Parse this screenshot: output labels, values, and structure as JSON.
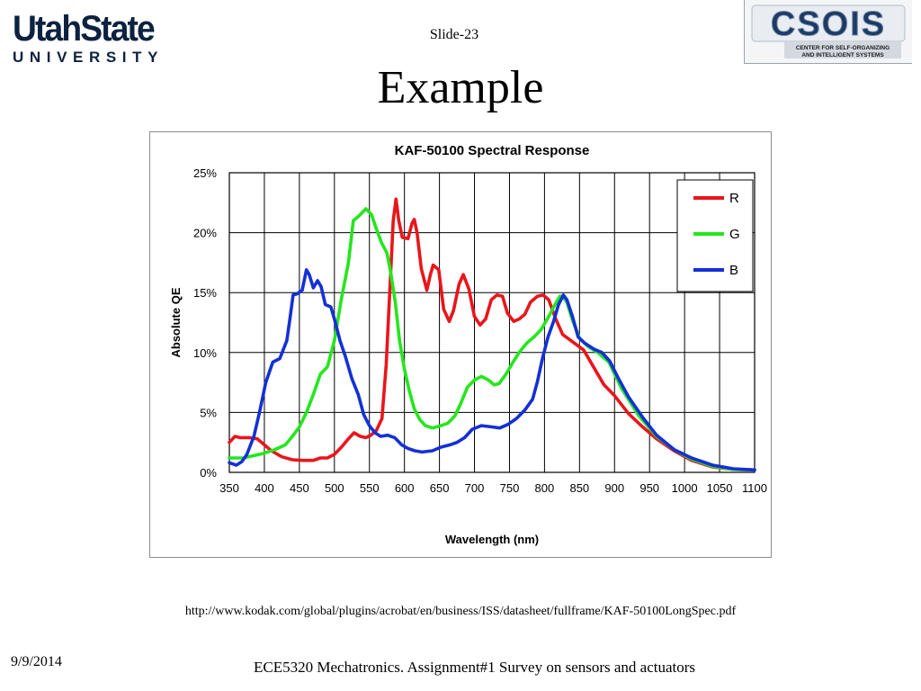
{
  "header": {
    "logo_left": {
      "line1": "UtahState",
      "line2": "UNIVERSITY"
    },
    "slide_number": "Slide-23",
    "title": "Example",
    "logo_right": {
      "name": "CSOIS",
      "subtitle_line1": "CENTER FOR SELF-ORGANIZING",
      "subtitle_line2": "AND INTELLIGENT SYSTEMS"
    }
  },
  "colors": {
    "red": "#e8161b",
    "green": "#25e61e",
    "blue": "#1430d6",
    "usu_navy": "#0d2240",
    "csois_navy": "#1d3a63"
  },
  "chart_data": {
    "type": "line",
    "title": "KAF-50100 Spectral Response",
    "xlabel": "Wavelength (nm)",
    "ylabel": "Absolute QE",
    "xlim": [
      350,
      1100
    ],
    "ylim": [
      0,
      25
    ],
    "grid": true,
    "legend_position": "top-right",
    "x_ticks": [
      350,
      400,
      450,
      500,
      550,
      600,
      650,
      700,
      750,
      800,
      850,
      900,
      950,
      1000,
      1050,
      1100
    ],
    "y_ticks": [
      0,
      5,
      10,
      15,
      20,
      25
    ],
    "y_tick_labels": [
      "0%",
      "5%",
      "10%",
      "15%",
      "20%",
      "25%"
    ],
    "series": [
      {
        "name": "R",
        "color": "#e8161b",
        "points": [
          [
            350,
            2.5
          ],
          [
            358,
            3.0
          ],
          [
            365,
            2.9
          ],
          [
            378,
            2.9
          ],
          [
            390,
            2.8
          ],
          [
            400,
            2.3
          ],
          [
            410,
            1.8
          ],
          [
            425,
            1.3
          ],
          [
            440,
            1.05
          ],
          [
            455,
            1.0
          ],
          [
            470,
            1.0
          ],
          [
            480,
            1.2
          ],
          [
            490,
            1.2
          ],
          [
            500,
            1.5
          ],
          [
            510,
            2.1
          ],
          [
            520,
            2.8
          ],
          [
            528,
            3.3
          ],
          [
            537,
            3.0
          ],
          [
            545,
            2.9
          ],
          [
            552,
            3.1
          ],
          [
            560,
            3.5
          ],
          [
            568,
            4.5
          ],
          [
            574,
            9.0
          ],
          [
            579,
            15.0
          ],
          [
            584,
            21.0
          ],
          [
            588,
            22.8
          ],
          [
            592,
            21.0
          ],
          [
            597,
            19.6
          ],
          [
            605,
            19.5
          ],
          [
            611,
            20.8
          ],
          [
            614,
            21.1
          ],
          [
            618,
            20.0
          ],
          [
            624,
            17.0
          ],
          [
            632,
            15.2
          ],
          [
            637,
            16.5
          ],
          [
            641,
            17.3
          ],
          [
            649,
            16.9
          ],
          [
            656,
            13.6
          ],
          [
            664,
            12.6
          ],
          [
            670,
            13.5
          ],
          [
            678,
            15.7
          ],
          [
            684,
            16.5
          ],
          [
            692,
            15.3
          ],
          [
            700,
            13.0
          ],
          [
            708,
            12.3
          ],
          [
            716,
            12.8
          ],
          [
            724,
            14.4
          ],
          [
            732,
            14.8
          ],
          [
            740,
            14.7
          ],
          [
            747,
            13.3
          ],
          [
            756,
            12.6
          ],
          [
            764,
            12.8
          ],
          [
            772,
            13.2
          ],
          [
            780,
            14.2
          ],
          [
            790,
            14.7
          ],
          [
            798,
            14.8
          ],
          [
            806,
            14.4
          ],
          [
            816,
            12.8
          ],
          [
            826,
            11.5
          ],
          [
            840,
            10.9
          ],
          [
            856,
            10.2
          ],
          [
            870,
            8.8
          ],
          [
            885,
            7.3
          ],
          [
            900,
            6.4
          ],
          [
            920,
            4.9
          ],
          [
            940,
            3.8
          ],
          [
            960,
            2.8
          ],
          [
            985,
            1.8
          ],
          [
            1010,
            1.0
          ],
          [
            1040,
            0.45
          ],
          [
            1070,
            0.25
          ],
          [
            1100,
            0.2
          ]
        ]
      },
      {
        "name": "G",
        "color": "#25e61e",
        "points": [
          [
            350,
            1.2
          ],
          [
            360,
            1.2
          ],
          [
            370,
            1.2
          ],
          [
            385,
            1.4
          ],
          [
            400,
            1.6
          ],
          [
            415,
            1.9
          ],
          [
            430,
            2.3
          ],
          [
            440,
            3.0
          ],
          [
            450,
            3.8
          ],
          [
            460,
            5.0
          ],
          [
            470,
            6.5
          ],
          [
            480,
            8.2
          ],
          [
            490,
            8.8
          ],
          [
            500,
            11.0
          ],
          [
            510,
            14.5
          ],
          [
            520,
            17.5
          ],
          [
            527,
            21.0
          ],
          [
            535,
            21.4
          ],
          [
            545,
            22.0
          ],
          [
            553,
            21.5
          ],
          [
            560,
            20.3
          ],
          [
            567,
            19.2
          ],
          [
            575,
            18.3
          ],
          [
            580,
            16.8
          ],
          [
            587,
            14.2
          ],
          [
            593,
            11.0
          ],
          [
            600,
            8.6
          ],
          [
            607,
            6.8
          ],
          [
            614,
            5.3
          ],
          [
            622,
            4.4
          ],
          [
            630,
            3.9
          ],
          [
            640,
            3.7
          ],
          [
            652,
            3.9
          ],
          [
            662,
            4.1
          ],
          [
            672,
            4.7
          ],
          [
            680,
            5.7
          ],
          [
            690,
            7.1
          ],
          [
            700,
            7.7
          ],
          [
            710,
            8.0
          ],
          [
            720,
            7.7
          ],
          [
            728,
            7.3
          ],
          [
            735,
            7.4
          ],
          [
            745,
            8.2
          ],
          [
            755,
            9.2
          ],
          [
            765,
            10.1
          ],
          [
            775,
            10.8
          ],
          [
            785,
            11.3
          ],
          [
            795,
            11.9
          ],
          [
            805,
            12.9
          ],
          [
            815,
            14.0
          ],
          [
            822,
            14.7
          ],
          [
            826,
            14.7
          ],
          [
            832,
            14.2
          ],
          [
            840,
            12.7
          ],
          [
            850,
            11.2
          ],
          [
            862,
            10.5
          ],
          [
            876,
            10.0
          ],
          [
            892,
            9.2
          ],
          [
            910,
            7.0
          ],
          [
            935,
            4.7
          ],
          [
            960,
            3.0
          ],
          [
            985,
            1.9
          ],
          [
            1010,
            1.1
          ],
          [
            1040,
            0.5
          ],
          [
            1070,
            0.25
          ],
          [
            1100,
            0.2
          ]
        ]
      },
      {
        "name": "B",
        "color": "#1430d6",
        "points": [
          [
            350,
            0.8
          ],
          [
            360,
            0.6
          ],
          [
            368,
            0.9
          ],
          [
            375,
            1.5
          ],
          [
            385,
            3.0
          ],
          [
            393,
            5.0
          ],
          [
            402,
            7.5
          ],
          [
            412,
            9.2
          ],
          [
            422,
            9.5
          ],
          [
            432,
            11.0
          ],
          [
            437,
            13.0
          ],
          [
            441,
            14.8
          ],
          [
            447,
            14.9
          ],
          [
            454,
            15.2
          ],
          [
            460,
            16.9
          ],
          [
            464,
            16.5
          ],
          [
            470,
            15.4
          ],
          [
            476,
            16.0
          ],
          [
            481,
            15.5
          ],
          [
            487,
            14.0
          ],
          [
            495,
            13.8
          ],
          [
            500,
            12.8
          ],
          [
            508,
            11.0
          ],
          [
            516,
            9.6
          ],
          [
            525,
            7.8
          ],
          [
            534,
            6.5
          ],
          [
            542,
            4.8
          ],
          [
            550,
            3.9
          ],
          [
            558,
            3.3
          ],
          [
            566,
            3.0
          ],
          [
            576,
            3.1
          ],
          [
            586,
            2.9
          ],
          [
            596,
            2.3
          ],
          [
            605,
            2.0
          ],
          [
            615,
            1.8
          ],
          [
            625,
            1.7
          ],
          [
            640,
            1.8
          ],
          [
            652,
            2.1
          ],
          [
            665,
            2.3
          ],
          [
            675,
            2.5
          ],
          [
            686,
            2.9
          ],
          [
            697,
            3.6
          ],
          [
            710,
            3.9
          ],
          [
            724,
            3.8
          ],
          [
            736,
            3.7
          ],
          [
            748,
            4.0
          ],
          [
            760,
            4.5
          ],
          [
            772,
            5.2
          ],
          [
            783,
            6.1
          ],
          [
            790,
            7.6
          ],
          [
            797,
            9.5
          ],
          [
            805,
            11.3
          ],
          [
            813,
            12.6
          ],
          [
            820,
            14.0
          ],
          [
            827,
            14.8
          ],
          [
            832,
            14.4
          ],
          [
            840,
            13.0
          ],
          [
            848,
            11.3
          ],
          [
            857,
            10.8
          ],
          [
            870,
            10.3
          ],
          [
            882,
            10.0
          ],
          [
            893,
            9.3
          ],
          [
            905,
            7.9
          ],
          [
            920,
            6.3
          ],
          [
            940,
            4.6
          ],
          [
            960,
            3.1
          ],
          [
            985,
            1.9
          ],
          [
            1010,
            1.2
          ],
          [
            1040,
            0.6
          ],
          [
            1070,
            0.3
          ],
          [
            1100,
            0.2
          ]
        ]
      }
    ]
  },
  "source_url": "http://www.kodak.com/global/plugins/acrobat/en/business/ISS/datasheet/fullframe/KAF-50100LongSpec.pdf",
  "footer": {
    "date": "9/9/2014",
    "text": "ECE5320 Mechatronics. Assignment#1 Survey on sensors and actuators"
  }
}
